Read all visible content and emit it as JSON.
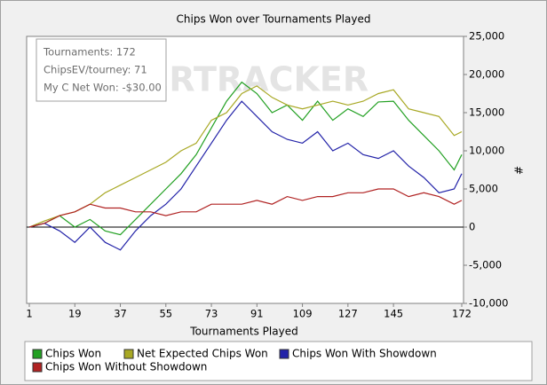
{
  "chart_data": {
    "type": "line",
    "title": "Chips Won over Tournaments Played",
    "xlabel": "Tournaments Played",
    "ylabel": "#",
    "watermark": "POKERTRACKER",
    "annotations": [
      "Tournaments: 172",
      "ChipsEV/tourney: 71",
      "My C Net Won: -$30.00"
    ],
    "x": [
      1,
      7,
      13,
      19,
      25,
      31,
      37,
      43,
      49,
      55,
      61,
      67,
      73,
      79,
      85,
      91,
      97,
      103,
      109,
      115,
      121,
      127,
      133,
      139,
      145,
      151,
      157,
      163,
      169,
      172
    ],
    "xlim": [
      1,
      172
    ],
    "xticks": [
      1,
      19,
      37,
      55,
      73,
      91,
      109,
      127,
      145,
      172
    ],
    "ylim": [
      -10000,
      25000
    ],
    "yticks": [
      {
        "value": -10000,
        "label": "-10,000"
      },
      {
        "value": -5000,
        "label": "-5,000"
      },
      0,
      {
        "value": 5000,
        "label": "5,000"
      },
      {
        "value": 10000,
        "label": "10,000"
      },
      {
        "value": 15000,
        "label": "15,000"
      },
      {
        "value": 20000,
        "label": "20,000"
      },
      {
        "value": 25000,
        "label": "25,000"
      }
    ],
    "series": [
      {
        "name": "Chips Won",
        "color": "#22a022",
        "values": [
          0,
          500,
          1500,
          0,
          1000,
          -500,
          -1000,
          1000,
          3000,
          5000,
          7000,
          9500,
          13000,
          16500,
          19000,
          17500,
          15000,
          16000,
          14000,
          16500,
          14000,
          15500,
          14500,
          16400,
          16500,
          14000,
          12000,
          10000,
          7500,
          9500
        ]
      },
      {
        "name": "Net Expected Chips Won",
        "color": "#a8a824",
        "values": [
          0,
          800,
          1500,
          2000,
          3000,
          4500,
          5500,
          6500,
          7500,
          8500,
          10000,
          11000,
          14000,
          15000,
          17500,
          18500,
          17000,
          16000,
          15500,
          16000,
          16500,
          16000,
          16500,
          17500,
          18000,
          15500,
          15000,
          14500,
          12000,
          12500
        ]
      },
      {
        "name": "Chips Won With Showdown",
        "color": "#2222a8",
        "values": [
          0,
          500,
          -500,
          -2000,
          0,
          -2000,
          -3000,
          -500,
          1500,
          3000,
          5000,
          8000,
          11000,
          14000,
          16500,
          14500,
          12500,
          11500,
          11000,
          12500,
          10000,
          11000,
          9500,
          9000,
          10000,
          8000,
          6500,
          4500,
          5000,
          7000
        ]
      },
      {
        "name": "Chips Won Without Showdown",
        "color": "#b02222",
        "values": [
          0,
          500,
          1500,
          2000,
          3000,
          2500,
          2500,
          2000,
          2000,
          1500,
          2000,
          2000,
          3000,
          3000,
          3000,
          3500,
          3000,
          4000,
          3500,
          4000,
          4000,
          4500,
          4500,
          5000,
          5000,
          4000,
          4500,
          4000,
          3000,
          3500
        ]
      }
    ]
  }
}
